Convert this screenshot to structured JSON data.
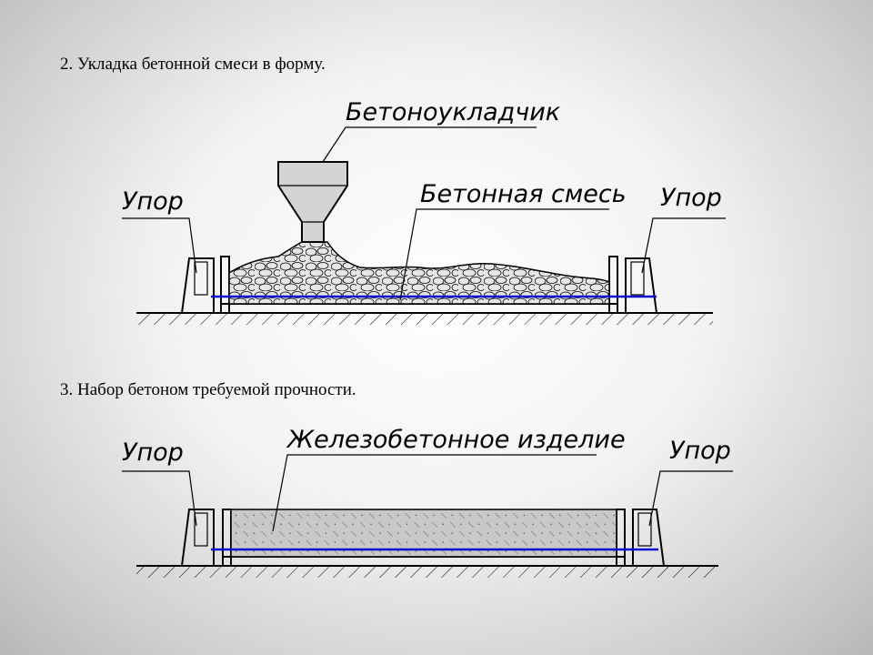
{
  "headings": {
    "step2": "2. Укладка бетонной смеси в форму.",
    "step3": "3. Набор бетоном требуемой прочности."
  },
  "diagram1": {
    "label_paver": "Бетоноукладчик",
    "label_mix": "Бетонная смесь",
    "label_stop_left": "Упор",
    "label_stop_right": "Упор"
  },
  "diagram2": {
    "label_product": "Железобетонное изделие",
    "label_stop_left": "Упор",
    "label_stop_right": "Упор"
  },
  "colors": {
    "reinforcement": "#1010d0",
    "background_center": "#ffffff",
    "background_edge": "#b8b8b8",
    "form_fill": "#d8d8d8",
    "product_fill": "#c8c8c8"
  }
}
